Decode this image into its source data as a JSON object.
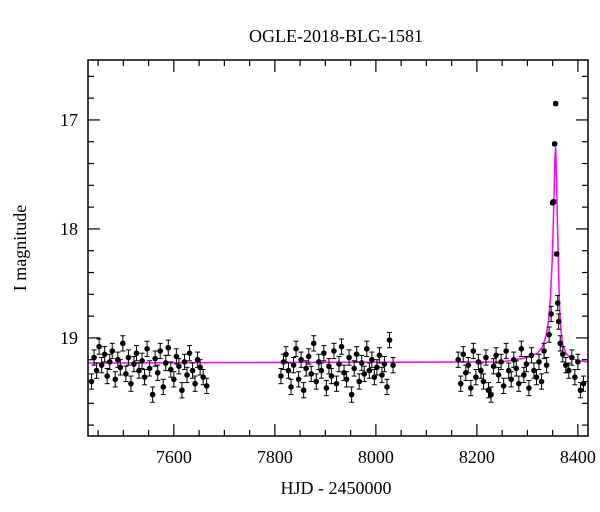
{
  "chart_data": {
    "type": "scatter",
    "title": "OGLE-2018-BLG-1581",
    "xlabel": "HJD - 2450000",
    "ylabel": "I magnitude",
    "xlim": [
      7430,
      8420
    ],
    "ylim": [
      19.9,
      16.45
    ],
    "y_inverted": true,
    "x_ticks": [
      7600,
      7800,
      8000,
      8200,
      8400
    ],
    "y_ticks": [
      17,
      18,
      19
    ],
    "colors": {
      "points": "#000000",
      "model": "#ff00ff"
    },
    "model": {
      "name": "",
      "baseline": 19.23,
      "x": [
        7430,
        8250,
        8300,
        8320,
        8330,
        8337,
        8342,
        8346,
        8349,
        8351,
        8353,
        8354.5,
        8356,
        8358,
        8360,
        8362,
        8364,
        8367,
        8370,
        8376,
        8385,
        8400,
        8420
      ],
      "y": [
        19.23,
        19.22,
        19.18,
        19.14,
        19.08,
        18.98,
        18.84,
        18.6,
        18.3,
        18.0,
        17.65,
        17.35,
        17.25,
        17.6,
        18.05,
        18.45,
        18.75,
        18.95,
        19.06,
        19.14,
        19.18,
        19.21,
        19.22
      ]
    },
    "series": [
      {
        "name": "",
        "x": [
          7437,
          7442,
          7447,
          7452,
          7457,
          7463,
          7468,
          7473,
          7478,
          7484,
          7489,
          7494,
          7499,
          7505,
          7510,
          7515,
          7521,
          7526,
          7531,
          7537,
          7542,
          7547,
          7552,
          7558,
          7563,
          7568,
          7573,
          7579,
          7584,
          7589,
          7594,
          7600,
          7605,
          7610,
          7616,
          7621,
          7626,
          7631,
          7637,
          7642,
          7647,
          7652,
          7658,
          7665,
          7812,
          7817,
          7822,
          7827,
          7832,
          7837,
          7842,
          7847,
          7852,
          7857,
          7862,
          7867,
          7872,
          7877,
          7882,
          7887,
          7892,
          7897,
          7902,
          7907,
          7912,
          7917,
          7922,
          7927,
          7932,
          7937,
          7942,
          7947,
          7952,
          7957,
          7962,
          7967,
          7972,
          7977,
          7982,
          7987,
          7992,
          7997,
          8002,
          8007,
          8012,
          8017,
          8022,
          8027,
          8034,
          8163,
          8168,
          8173,
          8178,
          8183,
          8188,
          8193,
          8198,
          8203,
          8208,
          8213,
          8218,
          8223,
          8228,
          8233,
          8238,
          8243,
          8248,
          8253,
          8258,
          8263,
          8268,
          8273,
          8278,
          8283,
          8288,
          8293,
          8298,
          8303,
          8308,
          8313,
          8318,
          8323,
          8328,
          8333,
          8338,
          8343,
          8347,
          8350,
          8352,
          8354,
          8356,
          8358,
          8360,
          8362,
          8365,
          8370,
          8376,
          8382,
          8388,
          8394,
          8400,
          8405,
          8411
        ],
        "y": [
          19.4,
          19.18,
          19.3,
          19.08,
          19.25,
          19.15,
          19.35,
          19.22,
          19.12,
          19.38,
          19.2,
          19.27,
          19.05,
          19.33,
          19.18,
          19.42,
          19.24,
          19.14,
          19.3,
          19.21,
          19.36,
          19.1,
          19.28,
          19.52,
          19.19,
          19.32,
          19.12,
          19.45,
          19.23,
          19.09,
          19.29,
          19.38,
          19.17,
          19.26,
          19.48,
          19.22,
          19.34,
          19.14,
          19.3,
          19.42,
          19.2,
          19.27,
          19.36,
          19.44,
          19.35,
          19.22,
          19.15,
          19.3,
          19.45,
          19.25,
          19.1,
          19.38,
          19.2,
          19.48,
          19.28,
          19.17,
          19.33,
          19.05,
          19.4,
          19.22,
          19.3,
          19.14,
          19.46,
          19.26,
          19.35,
          19.12,
          19.42,
          19.24,
          19.08,
          19.32,
          19.38,
          19.18,
          19.52,
          19.28,
          19.15,
          19.4,
          19.23,
          19.33,
          19.1,
          19.3,
          19.2,
          19.36,
          19.27,
          19.16,
          19.34,
          19.24,
          19.45,
          19.02,
          19.25,
          19.2,
          19.42,
          19.15,
          19.32,
          19.25,
          19.46,
          19.12,
          19.36,
          19.22,
          19.3,
          19.4,
          19.18,
          19.48,
          19.52,
          19.26,
          19.16,
          19.34,
          19.22,
          19.44,
          19.12,
          19.3,
          19.38,
          19.2,
          19.28,
          19.42,
          19.1,
          19.34,
          19.24,
          19.46,
          19.16,
          19.3,
          19.36,
          19.22,
          19.4,
          19.12,
          19.25,
          18.97,
          18.78,
          17.76,
          17.75,
          17.22,
          16.85,
          18.23,
          18.68,
          18.85,
          19.05,
          19.15,
          19.25,
          19.3,
          19.18,
          19.36,
          19.22,
          19.48,
          19.42
        ]
      }
    ]
  }
}
